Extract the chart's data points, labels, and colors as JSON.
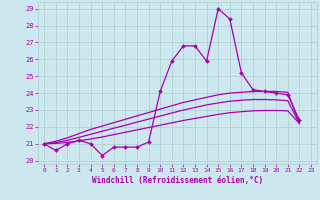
{
  "xlabel": "Windchill (Refroidissement éolien,°C)",
  "xlim": [
    -0.5,
    23.5
  ],
  "ylim": [
    19.8,
    29.4
  ],
  "xticks": [
    0,
    1,
    2,
    3,
    4,
    5,
    6,
    7,
    8,
    9,
    10,
    11,
    12,
    13,
    14,
    15,
    16,
    17,
    18,
    19,
    20,
    21,
    22,
    23
  ],
  "yticks": [
    20,
    21,
    22,
    23,
    24,
    25,
    26,
    27,
    28,
    29
  ],
  "bg_color": "#cce8ee",
  "line_color": "#aa00aa",
  "grid_color": "#aacccc",
  "main": [
    21.0,
    20.6,
    21.0,
    21.2,
    21.0,
    20.3,
    20.8,
    20.8,
    20.8,
    21.1,
    24.1,
    25.9,
    26.8,
    26.8,
    25.9,
    29.0,
    28.4,
    25.2,
    24.2,
    24.1,
    24.0,
    23.9,
    22.4
  ],
  "line1": [
    21.0,
    21.15,
    21.35,
    21.6,
    21.85,
    22.05,
    22.25,
    22.45,
    22.65,
    22.85,
    23.05,
    23.25,
    23.45,
    23.6,
    23.75,
    23.9,
    24.0,
    24.05,
    24.1,
    24.1,
    24.1,
    24.05,
    22.2
  ],
  "line2": [
    21.0,
    21.07,
    21.2,
    21.38,
    21.56,
    21.74,
    21.92,
    22.1,
    22.28,
    22.46,
    22.64,
    22.82,
    23.0,
    23.15,
    23.3,
    23.42,
    23.52,
    23.58,
    23.62,
    23.62,
    23.6,
    23.55,
    22.2
  ],
  "line3": [
    21.0,
    21.02,
    21.08,
    21.17,
    21.28,
    21.4,
    21.54,
    21.68,
    21.82,
    21.96,
    22.1,
    22.24,
    22.38,
    22.5,
    22.62,
    22.74,
    22.84,
    22.9,
    22.95,
    22.97,
    22.97,
    22.95,
    22.2
  ]
}
